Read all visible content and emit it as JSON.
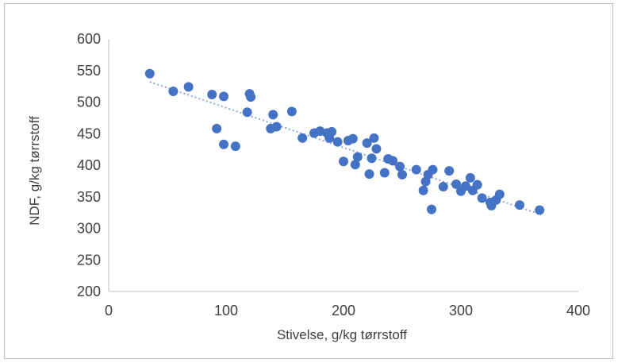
{
  "chart_data": {
    "type": "scatter",
    "title": "",
    "xlabel": "Stivelse, g/kg tørrstoff",
    "ylabel": "NDF, g/kg tørrstoff",
    "xlim": [
      0,
      400
    ],
    "ylim": [
      200,
      600
    ],
    "xticks": [
      "0",
      "100",
      "200",
      "300",
      "400"
    ],
    "yticks": [
      "200",
      "250",
      "300",
      "350",
      "400",
      "450",
      "500",
      "550",
      "600"
    ],
    "grid": false,
    "legend": "none",
    "colors": {
      "points": "#4472c4",
      "trendline": "#8fa8d6",
      "axis": "#bfbfbf",
      "text": "#404040"
    },
    "trendline": {
      "type": "linear",
      "x": [
        35,
        368
      ],
      "y": [
        532,
        322
      ]
    },
    "points": [
      {
        "x": 35,
        "y": 545
      },
      {
        "x": 55,
        "y": 517
      },
      {
        "x": 68,
        "y": 524
      },
      {
        "x": 88,
        "y": 512
      },
      {
        "x": 98,
        "y": 509
      },
      {
        "x": 92,
        "y": 458
      },
      {
        "x": 98,
        "y": 433
      },
      {
        "x": 108,
        "y": 430
      },
      {
        "x": 118,
        "y": 484
      },
      {
        "x": 120,
        "y": 513
      },
      {
        "x": 121,
        "y": 508
      },
      {
        "x": 138,
        "y": 458
      },
      {
        "x": 140,
        "y": 480
      },
      {
        "x": 143,
        "y": 461
      },
      {
        "x": 156,
        "y": 485
      },
      {
        "x": 165,
        "y": 443
      },
      {
        "x": 175,
        "y": 451
      },
      {
        "x": 180,
        "y": 454
      },
      {
        "x": 186,
        "y": 451
      },
      {
        "x": 188,
        "y": 443
      },
      {
        "x": 190,
        "y": 453
      },
      {
        "x": 195,
        "y": 437
      },
      {
        "x": 200,
        "y": 406
      },
      {
        "x": 204,
        "y": 439
      },
      {
        "x": 208,
        "y": 442
      },
      {
        "x": 210,
        "y": 401
      },
      {
        "x": 212,
        "y": 413
      },
      {
        "x": 220,
        "y": 435
      },
      {
        "x": 222,
        "y": 386
      },
      {
        "x": 224,
        "y": 411
      },
      {
        "x": 226,
        "y": 443
      },
      {
        "x": 228,
        "y": 426
      },
      {
        "x": 235,
        "y": 388
      },
      {
        "x": 238,
        "y": 410
      },
      {
        "x": 242,
        "y": 407
      },
      {
        "x": 248,
        "y": 398
      },
      {
        "x": 250,
        "y": 385
      },
      {
        "x": 262,
        "y": 393
      },
      {
        "x": 268,
        "y": 360
      },
      {
        "x": 270,
        "y": 374
      },
      {
        "x": 272,
        "y": 385
      },
      {
        "x": 275,
        "y": 330
      },
      {
        "x": 276,
        "y": 393
      },
      {
        "x": 285,
        "y": 366
      },
      {
        "x": 290,
        "y": 391
      },
      {
        "x": 296,
        "y": 370
      },
      {
        "x": 300,
        "y": 359
      },
      {
        "x": 304,
        "y": 367
      },
      {
        "x": 308,
        "y": 380
      },
      {
        "x": 310,
        "y": 360
      },
      {
        "x": 314,
        "y": 369
      },
      {
        "x": 318,
        "y": 348
      },
      {
        "x": 325,
        "y": 341
      },
      {
        "x": 326,
        "y": 336
      },
      {
        "x": 330,
        "y": 345
      },
      {
        "x": 333,
        "y": 354
      },
      {
        "x": 350,
        "y": 337
      },
      {
        "x": 367,
        "y": 329
      }
    ]
  }
}
